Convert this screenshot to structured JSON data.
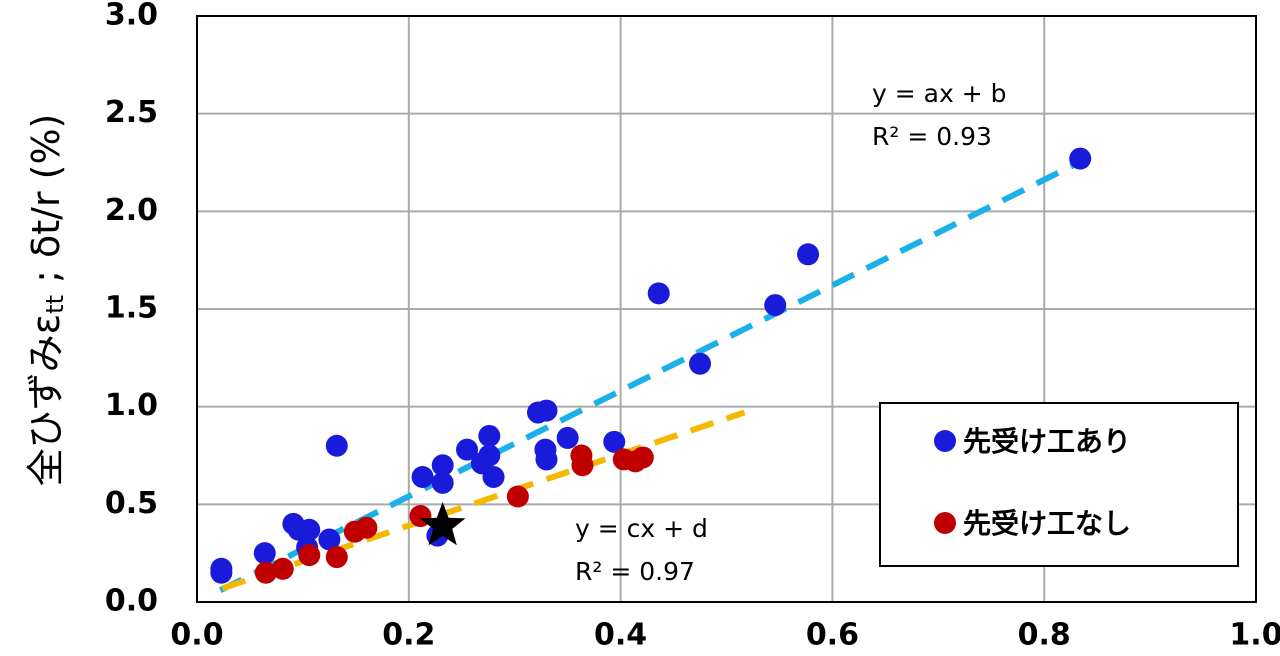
{
  "chart_data": {
    "type": "scatter",
    "ylabel": {
      "main": "全ひずみε",
      "sub": "tt",
      "rest": " ; δt/r (%)"
    },
    "xlim": [
      0,
      1
    ],
    "ylim": [
      0,
      3
    ],
    "xticks": [
      {
        "value": 0,
        "label": "0.0"
      },
      0.2,
      0.4,
      0.6,
      0.8,
      {
        "value": 1,
        "label": "1.0"
      }
    ],
    "yticks": [
      {
        "value": 0,
        "label": "0.0"
      },
      0.5,
      {
        "value": 1,
        "label": "1.0"
      },
      1.5,
      {
        "value": 2,
        "label": "2.0"
      },
      2.5,
      {
        "value": 3,
        "label": "3.0"
      }
    ],
    "grid": true,
    "legend": "lower right",
    "series": [
      {
        "name": "先受け工あり",
        "color": "#1a1adb",
        "x": [
          0.023,
          0.023,
          0.064,
          0.091,
          0.096,
          0.106,
          0.104,
          0.125,
          0.132,
          0.213,
          0.232,
          0.232,
          0.227,
          0.255,
          0.269,
          0.276,
          0.276,
          0.28,
          0.322,
          0.33,
          0.329,
          0.33,
          0.35,
          0.394,
          0.436,
          0.475,
          0.546,
          0.577,
          0.834
        ],
        "values": [
          0.17,
          0.15,
          0.25,
          0.4,
          0.37,
          0.37,
          0.28,
          0.32,
          0.8,
          0.64,
          0.7,
          0.61,
          0.34,
          0.78,
          0.71,
          0.85,
          0.75,
          0.64,
          0.97,
          0.98,
          0.78,
          0.73,
          0.84,
          0.82,
          1.58,
          1.22,
          1.52,
          1.78,
          2.27
        ]
      },
      {
        "name": "先受け工なし",
        "color": "#c00000",
        "x": [
          0.065,
          0.081,
          0.106,
          0.132,
          0.149,
          0.16,
          0.211,
          0.303,
          0.363,
          0.364,
          0.403,
          0.414,
          0.421
        ],
        "values": [
          0.15,
          0.17,
          0.24,
          0.23,
          0.36,
          0.38,
          0.44,
          0.54,
          0.75,
          0.7,
          0.73,
          0.72,
          0.74
        ]
      }
    ],
    "trendlines": [
      {
        "color": "#1cb0e8",
        "x": [
          0.022,
          0.829
        ],
        "values": [
          0.06,
          2.24
        ],
        "equation": "y = ax + b",
        "r2": "R² = 0.93"
      },
      {
        "color": "#f5b800",
        "x": [
          0.024,
          0.517
        ],
        "values": [
          0.07,
          0.97
        ],
        "equation": "y = cx + d",
        "r2": "R² = 0.97"
      }
    ],
    "highlight_point": {
      "x": 0.232,
      "y": 0.39,
      "color": "#000000"
    }
  }
}
